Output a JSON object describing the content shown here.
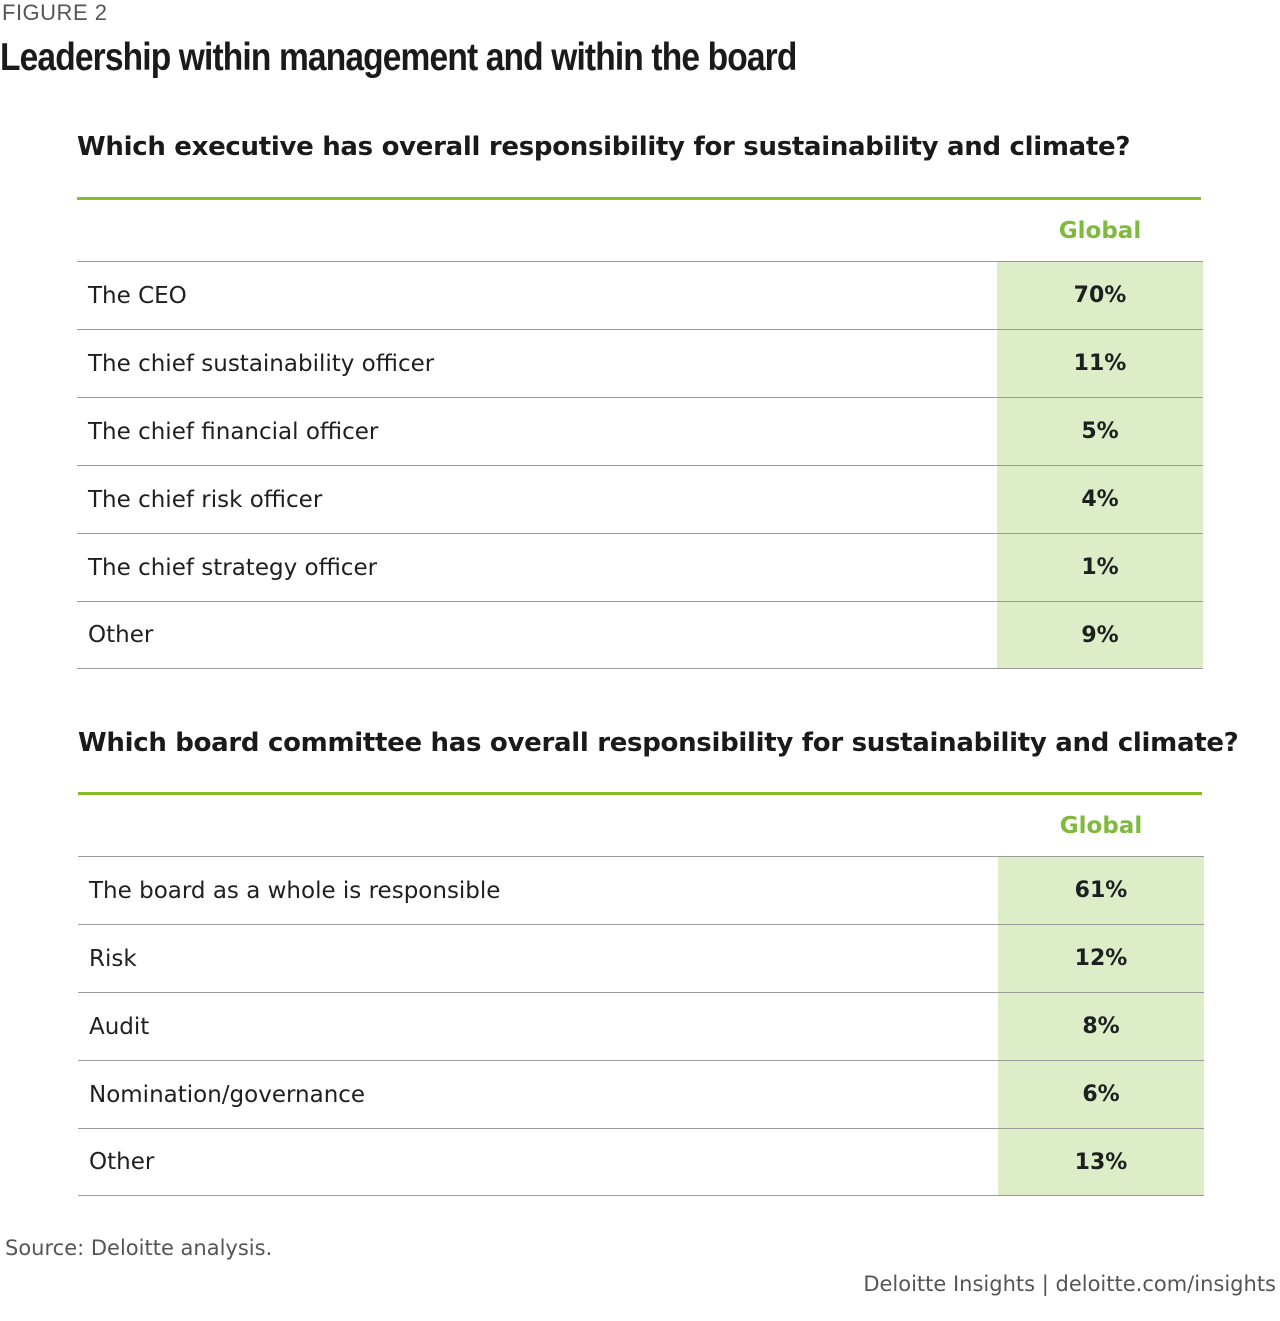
{
  "figure": {
    "label": "FIGURE 2",
    "title": "Leadership within management and within the board"
  },
  "colors": {
    "accent_green": "#86bc25",
    "header_green": "#7fba3c",
    "value_fill": "#dcedc8",
    "rule_gray": "#9a9a9a"
  },
  "chart_data": [
    {
      "type": "table",
      "title": "Which executive has overall responsibility for sustainability and climate?",
      "column_header": "Global",
      "rows": [
        {
          "label": "The CEO",
          "value": "70%"
        },
        {
          "label": "The chief sustainability officer",
          "value": "11%"
        },
        {
          "label": "The chief financial officer",
          "value": "5%"
        },
        {
          "label": "The chief risk officer",
          "value": "4%"
        },
        {
          "label": "The chief strategy officer",
          "value": "1%"
        },
        {
          "label": "Other",
          "value": "9%"
        }
      ]
    },
    {
      "type": "table",
      "title": "Which board committee has overall responsibility for sustainability and climate?",
      "column_header": "Global",
      "rows": [
        {
          "label": "The board as a whole is responsible",
          "value": "61%"
        },
        {
          "label": "Risk",
          "value": "12%"
        },
        {
          "label": "Audit",
          "value": "8%"
        },
        {
          "label": "Nomination/governance",
          "value": "6%"
        },
        {
          "label": "Other",
          "value": "13%"
        }
      ]
    }
  ],
  "footer": {
    "source": "Source: Deloitte analysis.",
    "credit": "Deloitte Insights | deloitte.com/insights"
  }
}
